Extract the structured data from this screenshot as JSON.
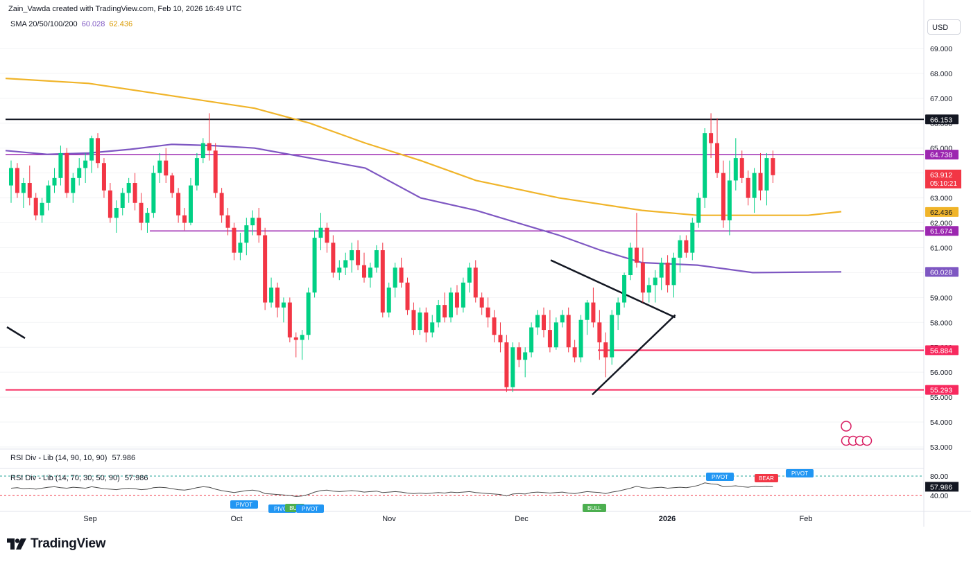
{
  "header": {
    "author_line": "Zain_Vawda created with TradingView.com, Feb 10, 2026 16:49 UTC",
    "sma_label": "SMA 20/50/100/200",
    "sma_value_1": "60.028",
    "sma_value_2": "62.436",
    "currency_button": "USD"
  },
  "indicators": {
    "rsi_label_1": "RSI Div - Lib (14, 90, 10, 90)",
    "rsi_value_1": "57.986",
    "rsi_label_2": "RSI Div - Lib (14, 70, 30, 50, 90)",
    "rsi_value_2": "57.986",
    "rsi_axis_ticks": [
      "80.00",
      "40.00"
    ],
    "rsi_current": "57.986",
    "rsi_tags": [
      "PIVOT",
      "PIVOT",
      "BUL",
      "PIVOT",
      "BULL",
      "PIVOT",
      "BEAR",
      "PIVOT"
    ]
  },
  "footer": {
    "brand": "TradingView"
  },
  "colors": {
    "up": "#089981",
    "down": "#f23645",
    "up_body": "#00d084",
    "sma_purple": "#7e57c2",
    "sma_yellow": "#f0b429",
    "pink_level": "#f7295e",
    "purple_level": "#9c27b0",
    "black_level": "#131722"
  },
  "chart_data": {
    "type": "candlestick",
    "symbol_timeframe": "daily",
    "ylim": [
      53.0,
      70.0
    ],
    "y_ticks": [
      "69.000",
      "68.000",
      "67.000",
      "66.000",
      "65.000",
      "64.000",
      "63.000",
      "62.000",
      "61.000",
      "60.000",
      "59.000",
      "58.000",
      "57.000",
      "56.000",
      "55.000",
      "54.000",
      "53.000"
    ],
    "x_labels": [
      "Sep",
      "Oct",
      "Nov",
      "Dec",
      "2026",
      "Feb"
    ],
    "horizontal_levels": [
      {
        "value": 66.153,
        "label": "66.153",
        "color": "#131722"
      },
      {
        "value": 64.738,
        "label": "64.738",
        "color": "#9c27b0"
      },
      {
        "value": 61.674,
        "label": "61.674",
        "color": "#9c27b0"
      },
      {
        "value": 56.884,
        "label": "56.884",
        "color": "#f7295e"
      },
      {
        "value": 55.293,
        "label": "55.293",
        "color": "#f7295e"
      }
    ],
    "price_labels": [
      {
        "value": 63.912,
        "label": "63.912",
        "sub": "05:10:21",
        "color": "#f23645"
      },
      {
        "value": 62.436,
        "label": "62.436",
        "color": "#f0b429"
      },
      {
        "value": 60.028,
        "label": "60.028",
        "color": "#7e57c2"
      }
    ],
    "sma_200": [
      [
        0,
        67.8
      ],
      [
        30,
        67.6
      ],
      [
        60,
        67.1
      ],
      [
        90,
        66.6
      ],
      [
        110,
        66.0
      ],
      [
        130,
        65.2
      ],
      [
        150,
        64.5
      ],
      [
        170,
        63.7
      ],
      [
        200,
        63.0
      ],
      [
        230,
        62.5
      ],
      [
        250,
        62.3
      ],
      [
        290,
        62.3
      ],
      [
        302,
        62.45
      ]
    ],
    "sma_100": [
      [
        0,
        64.9
      ],
      [
        15,
        64.75
      ],
      [
        30,
        64.8
      ],
      [
        45,
        64.95
      ],
      [
        60,
        65.15
      ],
      [
        75,
        65.1
      ],
      [
        90,
        65.0
      ],
      [
        110,
        64.6
      ],
      [
        130,
        64.2
      ],
      [
        150,
        63.0
      ],
      [
        170,
        62.5
      ],
      [
        200,
        61.5
      ],
      [
        215,
        60.9
      ],
      [
        230,
        60.4
      ],
      [
        250,
        60.3
      ],
      [
        270,
        60.0
      ],
      [
        302,
        60.03
      ]
    ],
    "trendlines": [
      {
        "from": [
          197,
          60.5
        ],
        "to": [
          242,
          58.2
        ]
      },
      {
        "from": [
          212,
          55.1
        ],
        "to": [
          242,
          58.3
        ]
      }
    ],
    "candles": [
      [
        0,
        63.5,
        64.5,
        62.8,
        64.2
      ],
      [
        1,
        64.2,
        64.4,
        63.0,
        63.2
      ],
      [
        2,
        63.2,
        63.8,
        62.6,
        63.6
      ],
      [
        3,
        63.6,
        64.3,
        62.7,
        63.0
      ],
      [
        4,
        63.0,
        63.2,
        62.1,
        62.3
      ],
      [
        5,
        62.3,
        63.0,
        62.0,
        62.8
      ],
      [
        6,
        62.8,
        63.7,
        62.5,
        63.5
      ],
      [
        7,
        63.5,
        64.2,
        63.2,
        63.8
      ],
      [
        8,
        63.8,
        65.1,
        63.5,
        64.8
      ],
      [
        9,
        64.8,
        65.0,
        63.0,
        63.2
      ],
      [
        10,
        63.2,
        64.0,
        62.8,
        63.8
      ],
      [
        11,
        63.8,
        64.6,
        63.5,
        64.2
      ],
      [
        12,
        64.2,
        64.8,
        63.6,
        64.5
      ],
      [
        13,
        64.5,
        65.5,
        64.0,
        65.4
      ],
      [
        14,
        65.4,
        65.6,
        64.2,
        64.4
      ],
      [
        15,
        64.4,
        64.6,
        63.0,
        63.3
      ],
      [
        16,
        63.3,
        63.6,
        62.0,
        62.2
      ],
      [
        17,
        62.2,
        62.9,
        61.6,
        62.6
      ],
      [
        18,
        62.6,
        63.4,
        62.3,
        63.2
      ],
      [
        19,
        63.2,
        63.8,
        62.8,
        63.6
      ],
      [
        20,
        63.6,
        64.0,
        62.5,
        62.8
      ],
      [
        21,
        62.8,
        63.2,
        61.7,
        62.0
      ],
      [
        22,
        62.0,
        62.6,
        61.6,
        62.4
      ],
      [
        23,
        62.4,
        64.3,
        62.2,
        64.0
      ],
      [
        24,
        64.0,
        64.8,
        63.6,
        64.5
      ],
      [
        25,
        64.5,
        65.0,
        63.6,
        63.9
      ],
      [
        26,
        63.9,
        64.0,
        63.0,
        63.2
      ],
      [
        27,
        63.2,
        63.4,
        62.0,
        62.3
      ],
      [
        28,
        62.3,
        62.6,
        61.7,
        62.0
      ],
      [
        29,
        62.0,
        63.8,
        61.9,
        63.5
      ],
      [
        30,
        63.5,
        64.8,
        63.3,
        64.6
      ],
      [
        31,
        64.6,
        65.4,
        64.4,
        65.2
      ],
      [
        32,
        65.2,
        66.4,
        64.5,
        64.9
      ],
      [
        33,
        64.9,
        65.2,
        63.0,
        63.2
      ],
      [
        34,
        63.2,
        63.4,
        62.0,
        62.3
      ],
      [
        35,
        62.3,
        62.6,
        61.5,
        61.8
      ],
      [
        36,
        61.8,
        62.0,
        60.5,
        60.8
      ],
      [
        37,
        60.8,
        61.6,
        60.5,
        61.2
      ],
      [
        38,
        61.2,
        62.2,
        60.7,
        61.9
      ],
      [
        39,
        61.9,
        62.5,
        61.5,
        62.2
      ],
      [
        40,
        62.2,
        62.6,
        61.2,
        61.5
      ],
      [
        41,
        61.5,
        61.8,
        58.5,
        58.8
      ],
      [
        42,
        58.8,
        59.8,
        58.6,
        59.4
      ],
      [
        43,
        59.4,
        59.6,
        58.2,
        58.6
      ],
      [
        44,
        58.6,
        59.0,
        58.0,
        58.8
      ],
      [
        45,
        58.8,
        59.0,
        57.2,
        57.4
      ],
      [
        46,
        57.4,
        57.6,
        56.6,
        57.3
      ],
      [
        47,
        57.3,
        57.7,
        56.5,
        57.5
      ],
      [
        48,
        57.5,
        59.4,
        57.3,
        59.2
      ],
      [
        49,
        59.2,
        61.7,
        59.0,
        61.4
      ],
      [
        50,
        61.4,
        62.4,
        60.9,
        61.8
      ],
      [
        51,
        61.8,
        62.0,
        60.8,
        61.2
      ],
      [
        52,
        61.2,
        61.5,
        59.8,
        60.0
      ],
      [
        53,
        60.0,
        60.5,
        59.7,
        60.2
      ],
      [
        54,
        60.2,
        60.8,
        59.9,
        60.5
      ],
      [
        55,
        60.5,
        61.2,
        60.0,
        60.9
      ],
      [
        56,
        60.9,
        61.3,
        60.1,
        60.3
      ],
      [
        57,
        60.3,
        60.8,
        59.6,
        59.8
      ],
      [
        58,
        59.8,
        60.4,
        59.4,
        60.2
      ],
      [
        59,
        60.2,
        61.1,
        60.0,
        60.9
      ],
      [
        60,
        60.9,
        61.2,
        58.2,
        58.4
      ],
      [
        61,
        58.4,
        59.6,
        58.2,
        59.4
      ],
      [
        62,
        59.4,
        60.4,
        59.0,
        60.2
      ],
      [
        63,
        60.2,
        60.6,
        59.4,
        59.6
      ],
      [
        64,
        59.6,
        59.8,
        58.3,
        58.5
      ],
      [
        65,
        58.5,
        58.8,
        57.5,
        57.7
      ],
      [
        66,
        57.7,
        58.6,
        57.5,
        58.4
      ],
      [
        67,
        58.4,
        58.6,
        57.2,
        57.6
      ],
      [
        68,
        57.6,
        58.3,
        57.4,
        58.0
      ],
      [
        69,
        58.0,
        58.9,
        57.8,
        58.7
      ],
      [
        70,
        58.7,
        59.2,
        58.0,
        58.2
      ],
      [
        71,
        58.2,
        59.4,
        58.0,
        59.2
      ],
      [
        72,
        59.2,
        59.5,
        58.3,
        58.6
      ],
      [
        73,
        58.6,
        59.8,
        58.4,
        59.6
      ],
      [
        74,
        59.6,
        60.4,
        59.2,
        60.2
      ],
      [
        75,
        60.2,
        60.5,
        58.8,
        59.0
      ],
      [
        76,
        59.0,
        59.2,
        58.3,
        58.6
      ],
      [
        77,
        58.6,
        59.0,
        57.8,
        58.2
      ],
      [
        78,
        58.2,
        58.5,
        57.2,
        57.5
      ],
      [
        79,
        57.5,
        58.0,
        56.8,
        57.2
      ],
      [
        80,
        57.2,
        57.5,
        55.2,
        55.4
      ],
      [
        81,
        55.4,
        57.2,
        55.2,
        57.0
      ],
      [
        82,
        57.0,
        57.2,
        56.2,
        56.5
      ],
      [
        83,
        56.5,
        57.0,
        55.8,
        56.8
      ],
      [
        84,
        56.8,
        58.0,
        56.6,
        57.8
      ],
      [
        85,
        57.8,
        58.5,
        57.5,
        58.3
      ],
      [
        86,
        58.3,
        58.6,
        57.4,
        57.7
      ],
      [
        87,
        57.7,
        58.5,
        56.8,
        57.0
      ],
      [
        88,
        57.0,
        58.2,
        56.9,
        58.0
      ],
      [
        89,
        58.0,
        58.5,
        57.8,
        58.3
      ],
      [
        90,
        58.3,
        58.6,
        56.8,
        57.0
      ],
      [
        91,
        57.0,
        57.3,
        56.4,
        56.6
      ],
      [
        92,
        56.6,
        58.3,
        56.4,
        58.1
      ],
      [
        93,
        58.1,
        58.9,
        57.5,
        58.8
      ],
      [
        94,
        58.8,
        59.4,
        57.8,
        58.0
      ],
      [
        95,
        58.0,
        58.5,
        56.5,
        57.2
      ],
      [
        96,
        57.2,
        57.6,
        55.8,
        56.6
      ],
      [
        97,
        56.6,
        58.5,
        56.3,
        58.3
      ],
      [
        98,
        58.3,
        59.0,
        57.7,
        58.8
      ],
      [
        99,
        58.8,
        60.0,
        58.6,
        59.9
      ],
      [
        100,
        59.9,
        61.2,
        59.7,
        61.0
      ],
      [
        101,
        61.0,
        62.4,
        60.2,
        60.4
      ],
      [
        102,
        60.4,
        61.0,
        58.8,
        59.2
      ],
      [
        103,
        59.2,
        59.8,
        58.8,
        59.5
      ],
      [
        104,
        59.5,
        60.1,
        58.8,
        59.8
      ],
      [
        105,
        59.8,
        60.6,
        59.3,
        60.4
      ],
      [
        106,
        60.4,
        60.7,
        59.2,
        59.5
      ],
      [
        107,
        59.5,
        60.8,
        59.0,
        60.6
      ],
      [
        108,
        60.6,
        61.5,
        60.0,
        61.3
      ],
      [
        109,
        61.3,
        61.5,
        60.6,
        60.8
      ],
      [
        110,
        60.8,
        62.2,
        60.5,
        62.0
      ],
      [
        111,
        62.0,
        63.2,
        61.8,
        63.0
      ],
      [
        112,
        63.0,
        65.8,
        62.6,
        65.6
      ],
      [
        113,
        65.6,
        66.4,
        64.6,
        65.2
      ],
      [
        114,
        65.2,
        66.2,
        63.8,
        64.0
      ],
      [
        115,
        64.0,
        64.5,
        61.8,
        62.1
      ],
      [
        116,
        62.1,
        64.5,
        61.5,
        63.7
      ],
      [
        117,
        63.7,
        65.4,
        63.3,
        64.6
      ],
      [
        118,
        64.6,
        64.9,
        63.6,
        63.8
      ],
      [
        119,
        63.8,
        64.1,
        62.7,
        63.0
      ],
      [
        120,
        63.0,
        64.2,
        62.4,
        64.0
      ],
      [
        121,
        64.0,
        64.8,
        62.9,
        63.3
      ],
      [
        122,
        63.3,
        64.8,
        62.7,
        64.6
      ],
      [
        123,
        64.6,
        64.9,
        63.6,
        63.912
      ]
    ],
    "rsi": [
      55,
      56,
      54,
      55,
      53,
      55,
      57,
      58,
      56,
      55,
      57,
      56,
      55,
      58,
      56,
      54,
      53,
      52,
      54,
      55,
      54,
      52,
      53,
      56,
      57,
      56,
      54,
      52,
      51,
      53,
      56,
      58,
      57,
      53,
      50,
      48,
      46,
      48,
      50,
      51,
      49,
      44,
      43,
      42,
      41,
      40,
      38,
      39,
      42,
      47,
      50,
      51,
      49,
      48,
      49,
      50,
      49,
      47,
      48,
      49,
      46,
      47,
      48,
      47,
      45,
      44,
      45,
      44,
      45,
      46,
      45,
      47,
      46,
      47,
      48,
      46,
      45,
      44,
      43,
      42,
      39,
      43,
      44,
      43,
      46,
      47,
      46,
      45,
      46,
      47,
      45,
      44,
      46,
      48,
      47,
      46,
      44,
      47,
      49,
      52,
      55,
      59,
      56,
      55,
      56,
      57,
      55,
      56,
      57,
      56,
      58,
      61,
      66,
      64,
      63,
      58,
      59,
      60,
      58,
      57,
      59,
      58,
      59,
      58
    ]
  }
}
